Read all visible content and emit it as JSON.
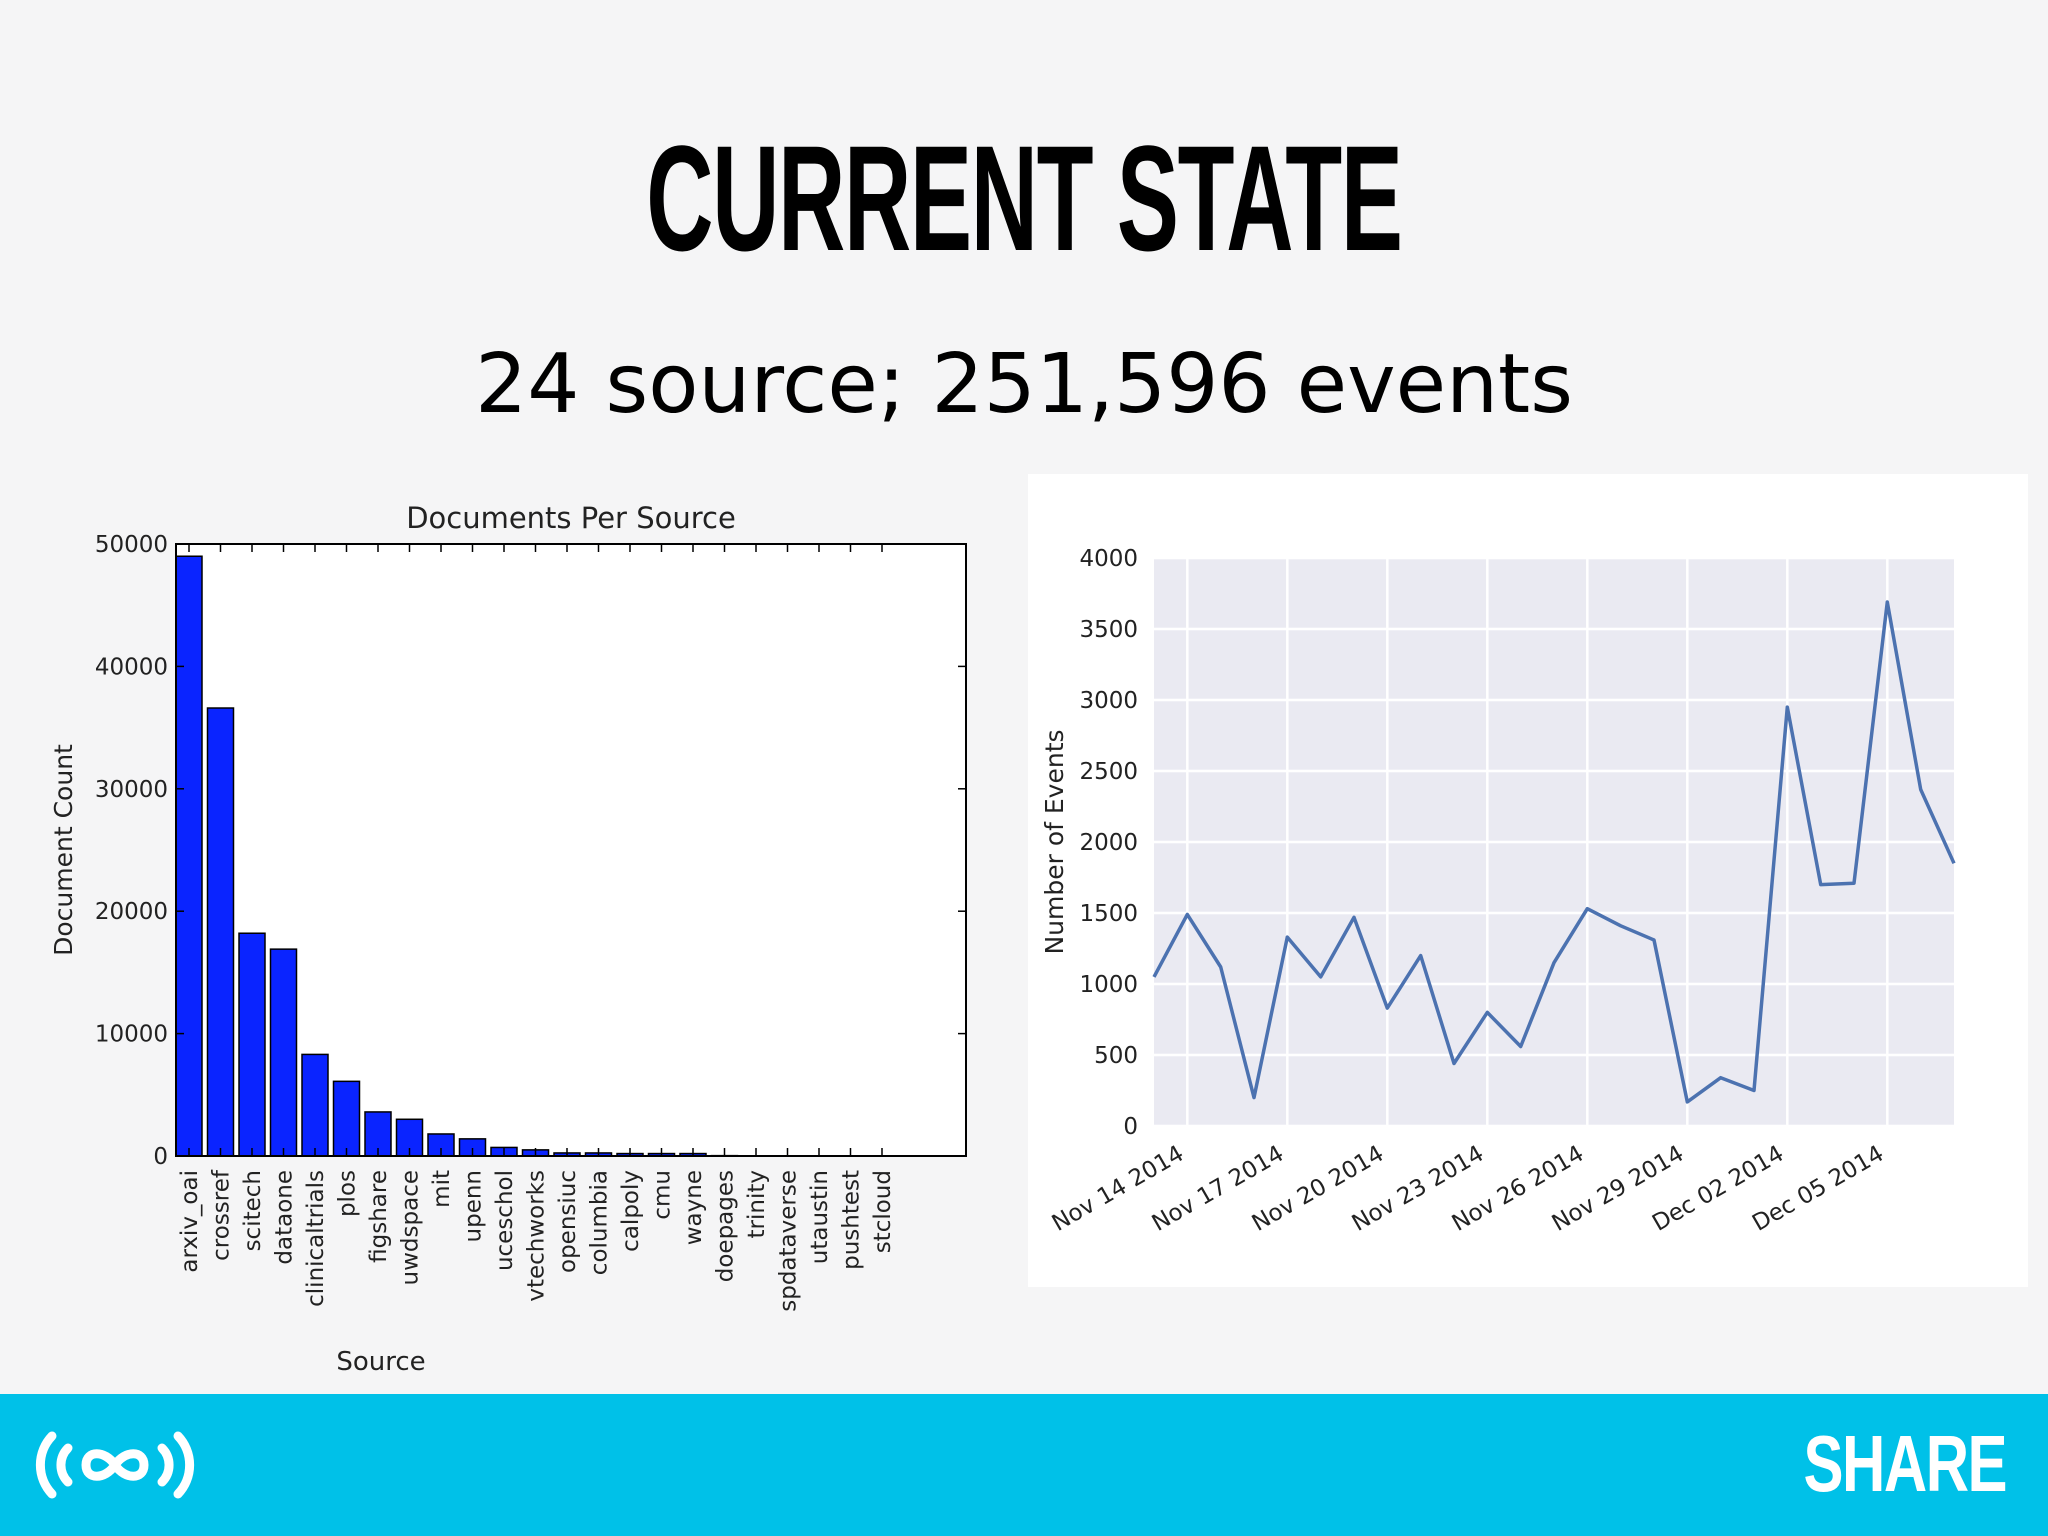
{
  "slide": {
    "title": "CURRENT STATE",
    "subtitle": "24 source; 251,596 events",
    "footer_brand": "SHARE"
  },
  "colors": {
    "background": "#f5f5f6",
    "footer": "#00c1e8",
    "bar_fill": "#0a24ff",
    "line": "#4c72b0",
    "plot_bg": "#eaeaf2"
  },
  "icons": {
    "footer_logo": "share-logo-icon"
  },
  "chart_data": [
    {
      "type": "bar",
      "title": "Documents Per Source",
      "xlabel": "Source",
      "ylabel": "Document Count",
      "ylim": [
        0,
        50000
      ],
      "yticks": [
        "0",
        "10000",
        "20000",
        "30000",
        "40000",
        "50000"
      ],
      "categories": [
        "arxiv_oai",
        "crossref",
        "scitech",
        "dataone",
        "clinicaltrials",
        "plos",
        "figshare",
        "uwdspace",
        "mit",
        "upenn",
        "uceschol",
        "vtechworks",
        "opensiuc",
        "columbia",
        "calpoly",
        "cmu",
        "wayne",
        "doepages",
        "trinity",
        "spdataverse",
        "utaustin",
        "pushtest",
        "stcloud"
      ],
      "values": [
        49000,
        36600,
        18200,
        16900,
        8300,
        6100,
        3600,
        3000,
        1800,
        1400,
        700,
        500,
        250,
        250,
        200,
        200,
        200,
        30,
        20,
        10,
        10,
        5,
        5
      ],
      "grid": false
    },
    {
      "type": "line",
      "title": "",
      "xlabel": "",
      "ylabel": "Number of Events",
      "ylim": [
        0,
        4000
      ],
      "yticks": [
        "0",
        "500",
        "1000",
        "1500",
        "2000",
        "2500",
        "3000",
        "3500",
        "4000"
      ],
      "x_start": "2014-11-13",
      "x_end": "2014-12-07",
      "xticks": [
        {
          "date": "2014-11-14",
          "label": "Nov 14 2014"
        },
        {
          "date": "2014-11-17",
          "label": "Nov 17 2014"
        },
        {
          "date": "2014-11-20",
          "label": "Nov 20 2014"
        },
        {
          "date": "2014-11-23",
          "label": "Nov 23 2014"
        },
        {
          "date": "2014-11-26",
          "label": "Nov 26 2014"
        },
        {
          "date": "2014-11-29",
          "label": "Nov 29 2014"
        },
        {
          "date": "2014-12-02",
          "label": "Dec 02 2014"
        },
        {
          "date": "2014-12-05",
          "label": "Dec 05 2014"
        }
      ],
      "series": [
        {
          "x": [
            "2014-11-13",
            "2014-11-14",
            "2014-11-15",
            "2014-11-16",
            "2014-11-17",
            "2014-11-18",
            "2014-11-19",
            "2014-11-20",
            "2014-11-21",
            "2014-11-22",
            "2014-11-23",
            "2014-11-24",
            "2014-11-25",
            "2014-11-26",
            "2014-11-27",
            "2014-11-28",
            "2014-11-29",
            "2014-11-30",
            "2014-12-01",
            "2014-12-02",
            "2014-12-03",
            "2014-12-04",
            "2014-12-05",
            "2014-12-06",
            "2014-12-07"
          ],
          "values": [
            1050,
            1490,
            1120,
            200,
            1330,
            1050,
            1470,
            830,
            1200,
            440,
            800,
            560,
            1150,
            1530,
            1410,
            1310,
            170,
            340,
            250,
            2950,
            1700,
            1710,
            3690,
            2370,
            1850
          ]
        }
      ],
      "grid": true
    }
  ]
}
